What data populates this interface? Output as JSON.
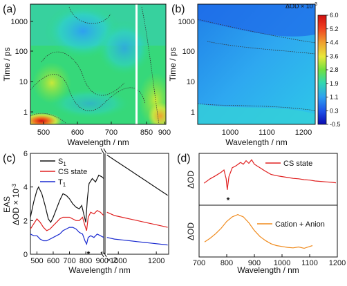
{
  "chart_data": [
    {
      "panel": "(a)",
      "type": "heatmap",
      "xlabel": "Wavelength / nm",
      "ylabel": "Time / ps",
      "x_tick_labels": [
        "500",
        "600",
        "700",
        "850",
        "900"
      ],
      "y_tick_labels": [
        "1",
        "10",
        "100",
        "1000"
      ],
      "yscale": "log",
      "colormap": [
        "#0a14c8",
        "#1e5af0",
        "#2e9cf0",
        "#2ed6d6",
        "#30e07a",
        "#7ee63a",
        "#e8e83a",
        "#f0a030",
        "#e83020",
        "#d01010"
      ]
    },
    {
      "panel": "(b)",
      "type": "heatmap",
      "xlabel": "Wavelength / nm",
      "ylabel": "Time / ps",
      "x_tick_labels": [
        "1000",
        "1100",
        "1200"
      ],
      "y_tick_labels": [
        "1",
        "10",
        "100",
        "1000"
      ],
      "yscale": "log",
      "colorbar": {
        "label": "ΔOD × 10",
        "label_exp": "-3",
        "ticks": [
          "6.0",
          "5.2",
          "4.4",
          "3.6",
          "2.8",
          "1.9",
          "1.1",
          "0.3",
          "-0.5"
        ]
      }
    },
    {
      "panel": "(c)",
      "type": "line",
      "xlabel": "Wavelength / nm",
      "ylabel_line1": "EAS",
      "ylabel_line2": "ΔOD × 10",
      "ylabel_exp": "-3",
      "x_tick_labels_left": [
        "500",
        "600",
        "700",
        "800",
        "900"
      ],
      "x_tick_labels_right": [
        "1000",
        "1200"
      ],
      "y_tick_labels": [
        "0",
        "2",
        "4",
        "6"
      ],
      "ylim": [
        0,
        6
      ],
      "annotations": [
        "*",
        "× 2"
      ],
      "series": [
        {
          "name": "S",
          "sub": "1",
          "color": "#111111",
          "left": [
            [
              460,
              2.2
            ],
            [
              480,
              3.1
            ],
            [
              500,
              3.8
            ],
            [
              510,
              4.0
            ],
            [
              530,
              3.6
            ],
            [
              550,
              2.9
            ],
            [
              570,
              2.1
            ],
            [
              585,
              1.9
            ],
            [
              600,
              2.2
            ],
            [
              620,
              2.7
            ],
            [
              640,
              3.2
            ],
            [
              660,
              3.6
            ],
            [
              680,
              3.5
            ],
            [
              700,
              3.3
            ],
            [
              720,
              3.0
            ],
            [
              740,
              2.8
            ],
            [
              760,
              2.7
            ],
            [
              775,
              2.9
            ],
            [
              790,
              2.3
            ],
            [
              800,
              1.9
            ],
            [
              810,
              3.3
            ],
            [
              820,
              4.2
            ],
            [
              840,
              4.5
            ],
            [
              860,
              4.3
            ],
            [
              880,
              4.7
            ],
            [
              900,
              4.6
            ],
            [
              910,
              4.5
            ]
          ],
          "right": [
            [
              940,
              5.9
            ],
            [
              980,
              5.6
            ],
            [
              1020,
              5.3
            ],
            [
              1060,
              5.0
            ],
            [
              1100,
              4.7
            ],
            [
              1140,
              4.4
            ],
            [
              1180,
              4.1
            ],
            [
              1220,
              3.8
            ],
            [
              1260,
              3.5
            ]
          ]
        },
        {
          "name": "CS state",
          "color": "#e02020",
          "left": [
            [
              460,
              1.5
            ],
            [
              480,
              1.8
            ],
            [
              500,
              2.1
            ],
            [
              520,
              1.9
            ],
            [
              540,
              1.6
            ],
            [
              560,
              1.4
            ],
            [
              580,
              1.5
            ],
            [
              600,
              1.7
            ],
            [
              620,
              1.9
            ],
            [
              640,
              2.1
            ],
            [
              660,
              2.2
            ],
            [
              680,
              2.2
            ],
            [
              700,
              2.2
            ],
            [
              720,
              2.1
            ],
            [
              740,
              2.0
            ],
            [
              760,
              2.0
            ],
            [
              780,
              2.2
            ],
            [
              795,
              1.7
            ],
            [
              805,
              1.4
            ],
            [
              815,
              2.2
            ],
            [
              830,
              2.5
            ],
            [
              850,
              2.4
            ],
            [
              870,
              2.6
            ],
            [
              890,
              2.5
            ],
            [
              910,
              2.3
            ]
          ],
          "right": [
            [
              940,
              2.5
            ],
            [
              980,
              2.3
            ],
            [
              1020,
              2.2
            ],
            [
              1060,
              2.1
            ],
            [
              1100,
              2.0
            ],
            [
              1140,
              1.9
            ],
            [
              1180,
              1.8
            ],
            [
              1220,
              1.7
            ],
            [
              1260,
              1.6
            ]
          ]
        },
        {
          "name": "T",
          "sub": "1",
          "color": "#1a2ad0",
          "left": [
            [
              460,
              1.2
            ],
            [
              480,
              1.1
            ],
            [
              500,
              1.1
            ],
            [
              520,
              0.9
            ],
            [
              540,
              0.8
            ],
            [
              560,
              0.8
            ],
            [
              580,
              0.9
            ],
            [
              600,
              1.0
            ],
            [
              620,
              1.1
            ],
            [
              640,
              1.2
            ],
            [
              660,
              1.4
            ],
            [
              680,
              1.5
            ],
            [
              700,
              1.6
            ],
            [
              720,
              1.6
            ],
            [
              740,
              1.5
            ],
            [
              760,
              1.3
            ],
            [
              780,
              1.2
            ],
            [
              795,
              0.8
            ],
            [
              805,
              0.6
            ],
            [
              815,
              1.0
            ],
            [
              830,
              1.1
            ],
            [
              850,
              1.0
            ],
            [
              870,
              1.2
            ],
            [
              890,
              1.1
            ],
            [
              910,
              1.0
            ]
          ],
          "right": [
            [
              940,
              1.0
            ],
            [
              980,
              0.9
            ],
            [
              1020,
              0.85
            ],
            [
              1060,
              0.8
            ],
            [
              1100,
              0.75
            ],
            [
              1140,
              0.7
            ],
            [
              1180,
              0.65
            ],
            [
              1220,
              0.6
            ],
            [
              1260,
              0.55
            ]
          ]
        }
      ]
    },
    {
      "panel": "(d)",
      "type": "line",
      "xlabel": "Wavelength / nm",
      "ylabel_top": "ΔOD",
      "ylabel_bottom": "ΔOD",
      "x_tick_labels": [
        "700",
        "800",
        "900",
        "1000",
        "1100",
        "1200"
      ],
      "xlim": [
        700,
        1200
      ],
      "annotations": [
        "*"
      ],
      "series": [
        {
          "name": "CS state",
          "color": "#e02020",
          "points": [
            [
              718,
              0.45
            ],
            [
              740,
              0.55
            ],
            [
              760,
              0.62
            ],
            [
              780,
              0.7
            ],
            [
              790,
              0.75
            ],
            [
              798,
              0.55
            ],
            [
              802,
              0.3
            ],
            [
              808,
              0.6
            ],
            [
              820,
              0.8
            ],
            [
              835,
              0.85
            ],
            [
              850,
              0.92
            ],
            [
              860,
              0.88
            ],
            [
              870,
              0.96
            ],
            [
              880,
              0.9
            ],
            [
              890,
              0.98
            ],
            [
              900,
              0.88
            ],
            [
              920,
              0.8
            ],
            [
              940,
              0.72
            ],
            [
              960,
              0.65
            ],
            [
              980,
              0.62
            ],
            [
              1000,
              0.6
            ],
            [
              1020,
              0.58
            ],
            [
              1040,
              0.56
            ],
            [
              1060,
              0.55
            ],
            [
              1080,
              0.53
            ],
            [
              1100,
              0.52
            ],
            [
              1120,
              0.5
            ],
            [
              1140,
              0.49
            ],
            [
              1160,
              0.48
            ],
            [
              1180,
              0.47
            ],
            [
              1195,
              0.46
            ]
          ]
        },
        {
          "name": "Cation + Anion",
          "color": "#f08a1c",
          "points": [
            [
              720,
              0.3
            ],
            [
              740,
              0.38
            ],
            [
              760,
              0.48
            ],
            [
              780,
              0.6
            ],
            [
              800,
              0.75
            ],
            [
              820,
              0.85
            ],
            [
              840,
              0.9
            ],
            [
              860,
              0.85
            ],
            [
              880,
              0.72
            ],
            [
              900,
              0.55
            ],
            [
              920,
              0.42
            ],
            [
              940,
              0.33
            ],
            [
              960,
              0.26
            ],
            [
              980,
              0.22
            ],
            [
              1000,
              0.2
            ],
            [
              1020,
              0.18
            ],
            [
              1040,
              0.17
            ],
            [
              1060,
              0.19
            ],
            [
              1080,
              0.16
            ],
            [
              1100,
              0.2
            ],
            [
              1110,
              0.22
            ]
          ]
        }
      ]
    }
  ]
}
